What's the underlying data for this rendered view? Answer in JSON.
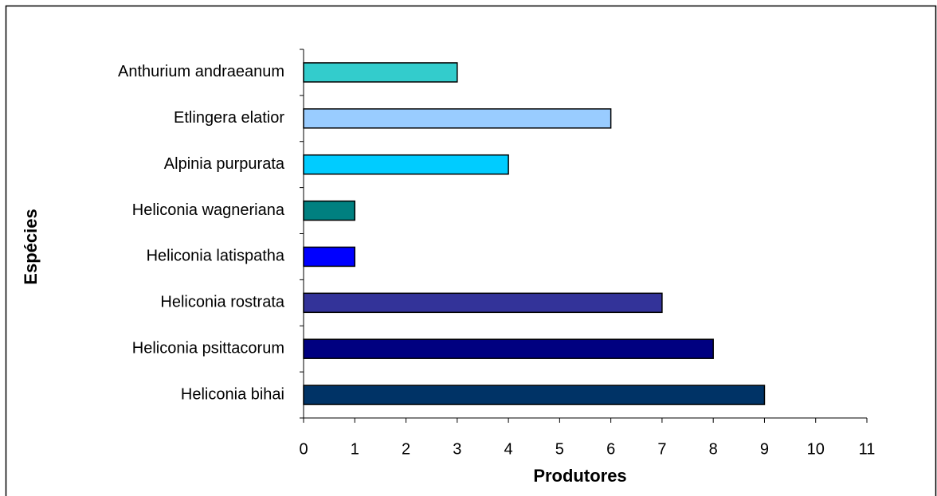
{
  "chart_data": {
    "type": "barh",
    "categories": [
      "Heliconia bihai",
      "Heliconia psittacorum",
      "Heliconia rostrata",
      "Heliconia latispatha",
      "Heliconia wagneriana",
      "Alpinia purpurata",
      "Etlingera elatior",
      "Anthurium andraeanum"
    ],
    "values": [
      9,
      8,
      7,
      1,
      1,
      4,
      6,
      3
    ],
    "colors": [
      "#003366",
      "#000080",
      "#333399",
      "#0000ff",
      "#008080",
      "#00ccff",
      "#99ccff",
      "#33cccc"
    ],
    "xlim": [
      0,
      11
    ],
    "xticks": [
      0,
      1,
      2,
      3,
      4,
      5,
      6,
      7,
      8,
      9,
      10,
      11
    ],
    "x_label": "Produtores",
    "y_label": "Espécies"
  }
}
